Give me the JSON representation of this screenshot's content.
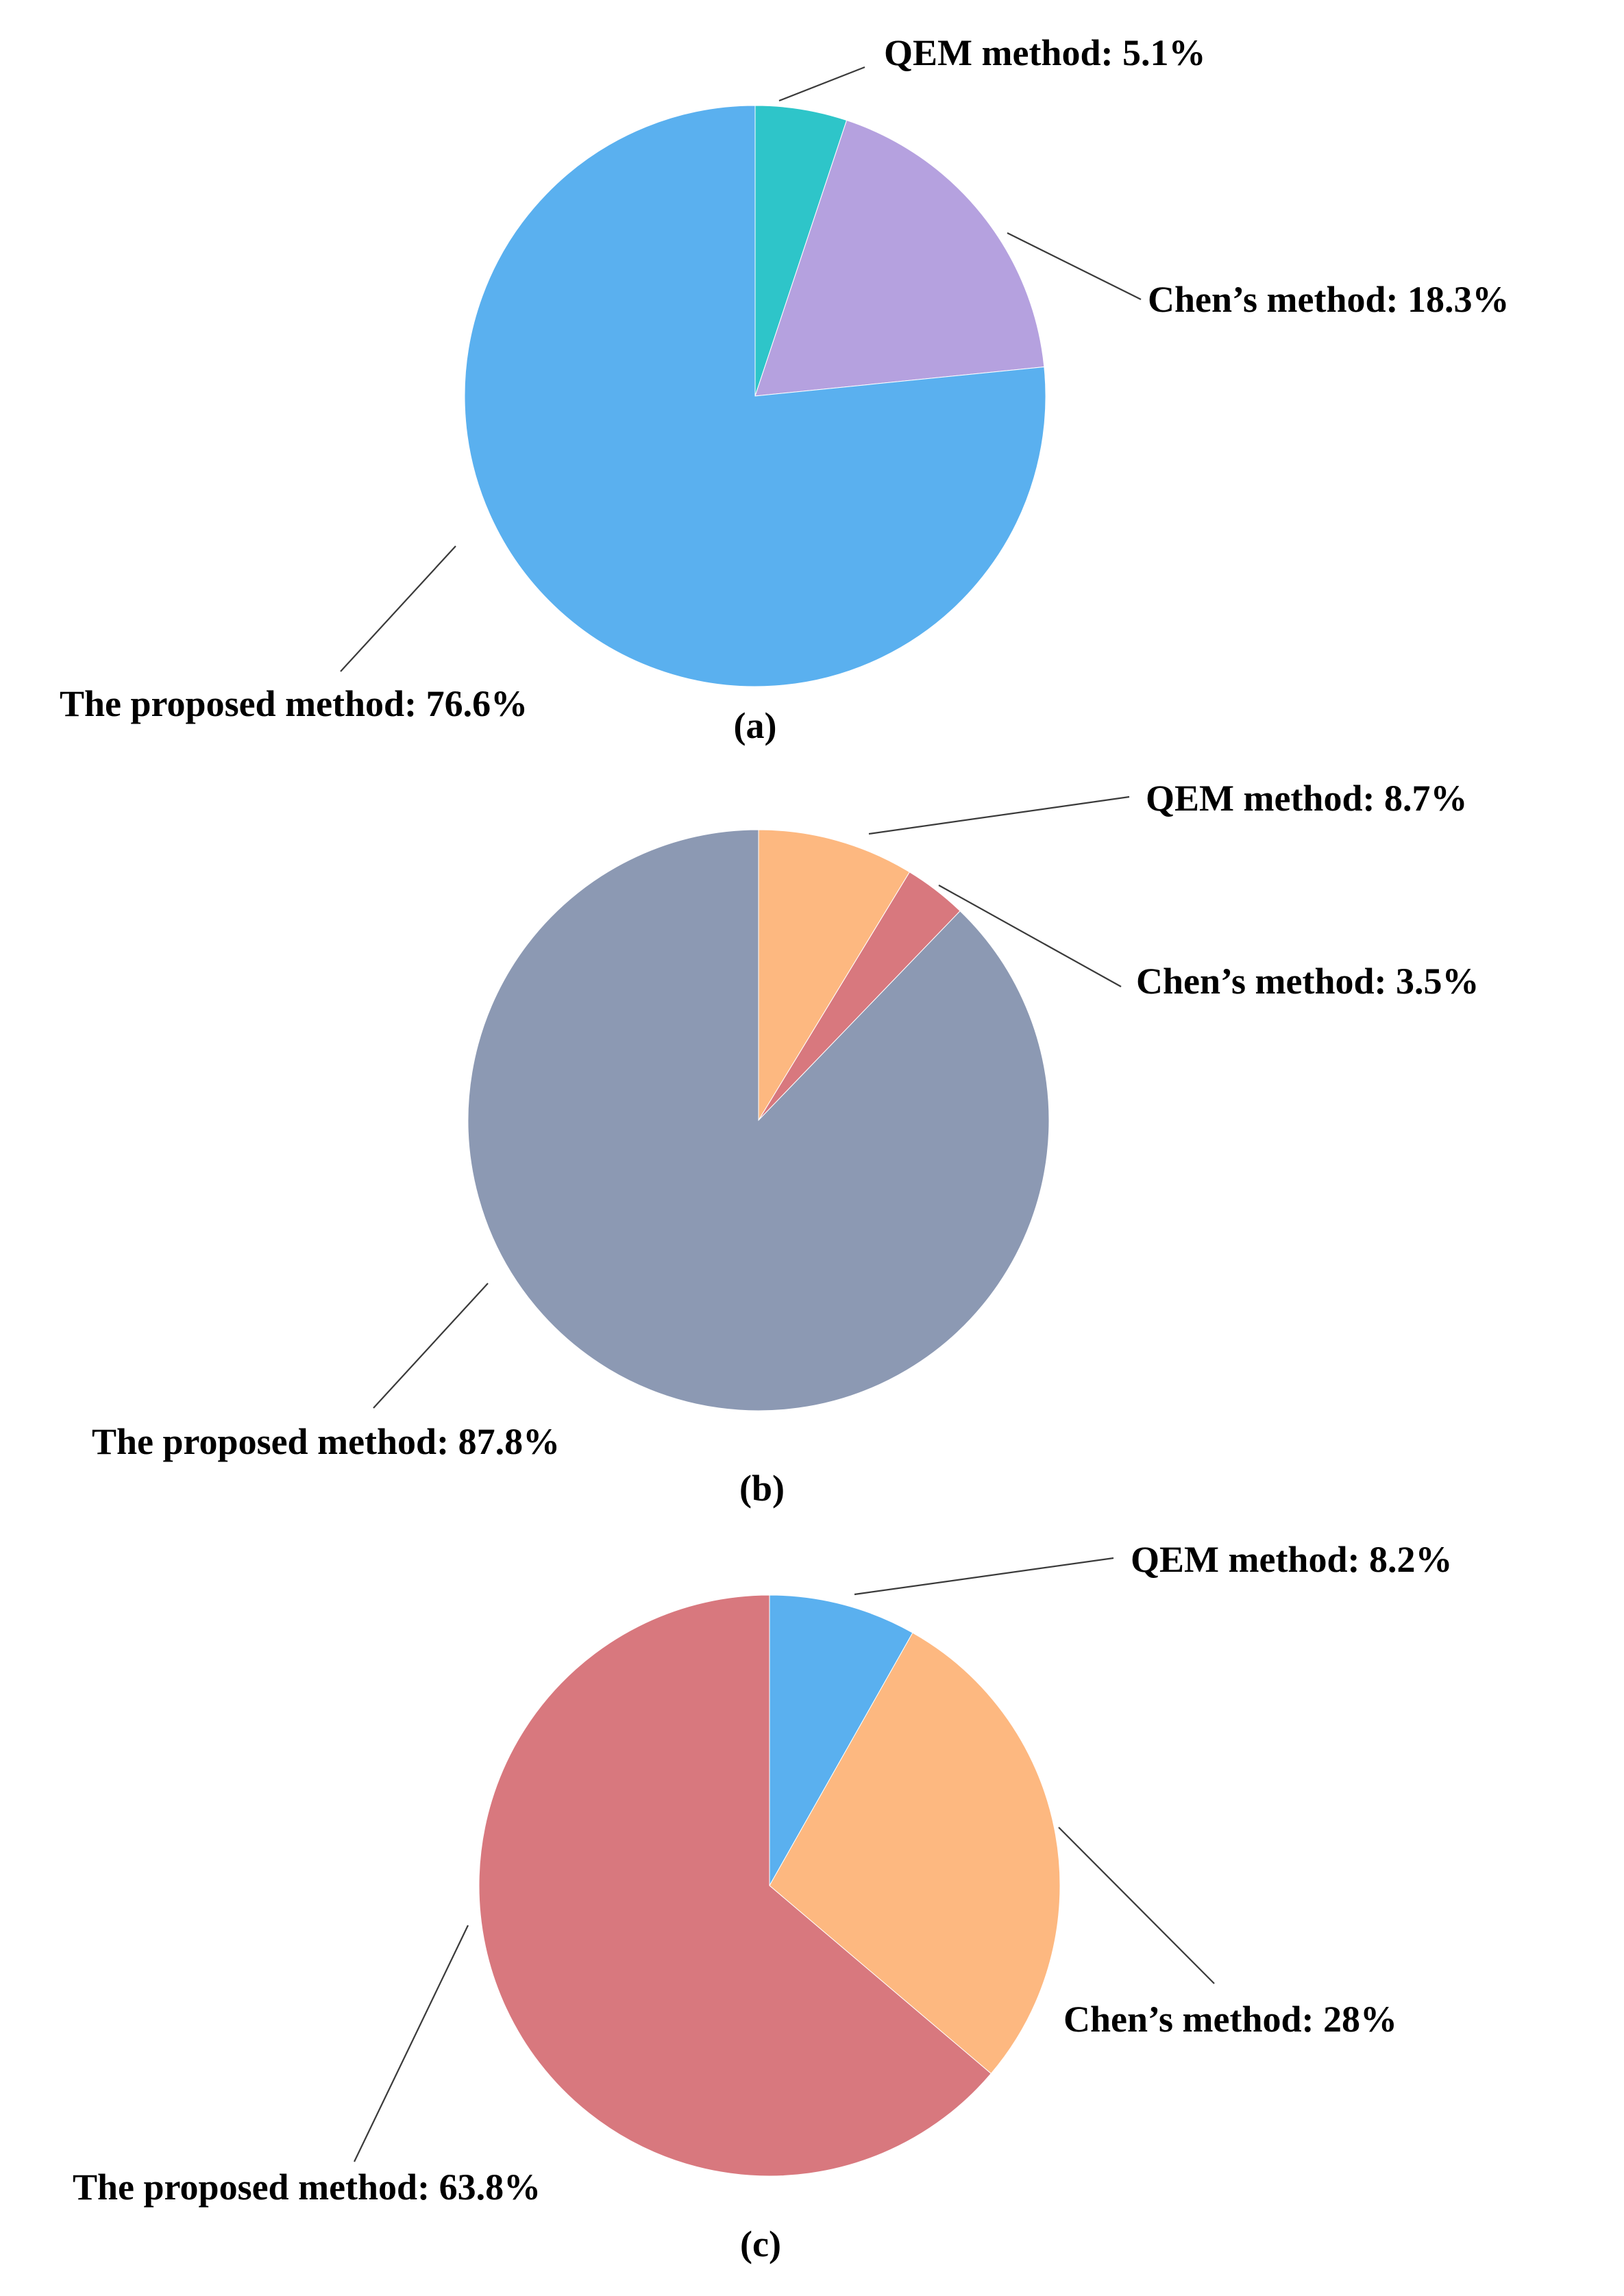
{
  "chart_data": [
    {
      "type": "pie",
      "caption": "(a)",
      "slices": [
        {
          "label": "QEM method: 5.1%",
          "value": 5.1,
          "color": "#2EC5C9"
        },
        {
          "label": "Chen’s method: 18.3%",
          "value": 18.3,
          "color": "#B5A1DF"
        },
        {
          "label": "The proposed method: 76.6%",
          "value": 76.6,
          "color": "#5AB0EF"
        }
      ]
    },
    {
      "type": "pie",
      "caption": "(b)",
      "slices": [
        {
          "label": "QEM method: 8.7%",
          "value": 8.7,
          "color": "#FDB880"
        },
        {
          "label": "Chen’s method: 3.5%",
          "value": 3.5,
          "color": "#D8787E"
        },
        {
          "label": "The proposed method: 87.8%",
          "value": 87.8,
          "color": "#8C99B3"
        }
      ]
    },
    {
      "type": "pie",
      "caption": "(c)",
      "slices": [
        {
          "label": "QEM method: 8.2%",
          "value": 8.2,
          "color": "#5AB0EF"
        },
        {
          "label": "Chen’s method: 28%",
          "value": 28,
          "color": "#FDB880"
        },
        {
          "label": "The proposed method: 63.8%",
          "value": 63.8,
          "color": "#D8787E"
        }
      ]
    }
  ]
}
